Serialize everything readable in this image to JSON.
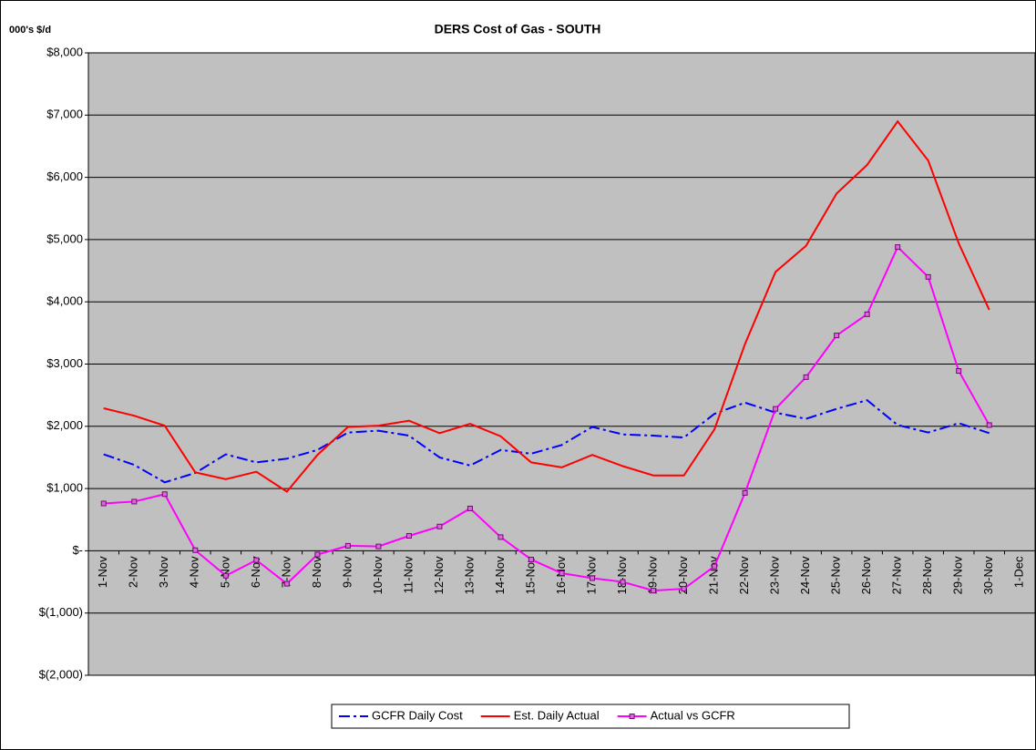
{
  "chart_data": {
    "type": "line",
    "title": "DERS Cost of Gas - SOUTH",
    "y_label": "000's $/d",
    "categories": [
      "1-Nov",
      "2-Nov",
      "3-Nov",
      "4-Nov",
      "5-Nov",
      "6-Nov",
      "7-Nov",
      "8-Nov",
      "9-Nov",
      "10-Nov",
      "11-Nov",
      "12-Nov",
      "13-Nov",
      "14-Nov",
      "15-Nov",
      "16-Nov",
      "17-Nov",
      "18-Nov",
      "19-Nov",
      "20-Nov",
      "21-Nov",
      "22-Nov",
      "23-Nov",
      "24-Nov",
      "25-Nov",
      "26-Nov",
      "27-Nov",
      "28-Nov",
      "29-Nov",
      "30-Nov",
      "1-Dec"
    ],
    "series": [
      {
        "name": "GCFR Daily Cost",
        "color": "#0000ff",
        "dash": "dashdot",
        "marker": false,
        "values": [
          1550,
          1380,
          1100,
          1250,
          1550,
          1420,
          1480,
          1620,
          1900,
          1930,
          1850,
          1500,
          1370,
          1620,
          1560,
          1700,
          1990,
          1870,
          1850,
          1820,
          2200,
          2380,
          2220,
          2120,
          2280,
          2420,
          2020,
          1900,
          2050,
          1890,
          null
        ]
      },
      {
        "name": "Est. Daily Actual",
        "color": "#ff0000",
        "dash": "solid",
        "marker": false,
        "values": [
          2290,
          2170,
          2010,
          1260,
          1150,
          1270,
          950,
          1540,
          1990,
          2010,
          2090,
          1890,
          2040,
          1840,
          1420,
          1340,
          1540,
          1360,
          1210,
          1210,
          1950,
          3320,
          4480,
          4900,
          5740,
          6200,
          6900,
          6270,
          4940,
          3870,
          null
        ]
      },
      {
        "name": "Actual vs GCFR",
        "color": "#ff00ff",
        "dash": "solid",
        "marker": true,
        "values": [
          760,
          790,
          910,
          10,
          -400,
          -150,
          -530,
          -60,
          80,
          70,
          240,
          390,
          680,
          220,
          -140,
          -360,
          -440,
          -500,
          -640,
          -610,
          -250,
          930,
          2280,
          2790,
          3460,
          3800,
          4880,
          4400,
          2890,
          2020,
          null
        ]
      }
    ],
    "ylim": [
      -2000,
      8000
    ],
    "yticks": [
      {
        "value": -2000,
        "label": "$(2,000)"
      },
      {
        "value": -1000,
        "label": "$(1,000)"
      },
      {
        "value": 0,
        "label": "$-"
      },
      {
        "value": 1000,
        "label": "$1,000"
      },
      {
        "value": 2000,
        "label": "$2,000"
      },
      {
        "value": 3000,
        "label": "$3,000"
      },
      {
        "value": 4000,
        "label": "$4,000"
      },
      {
        "value": 5000,
        "label": "$5,000"
      },
      {
        "value": 6000,
        "label": "$6,000"
      },
      {
        "value": 7000,
        "label": "$7,000"
      },
      {
        "value": 8000,
        "label": "$8,000"
      }
    ],
    "grid": true,
    "plot_background": "#c0c0c0",
    "legend": "bottom"
  }
}
